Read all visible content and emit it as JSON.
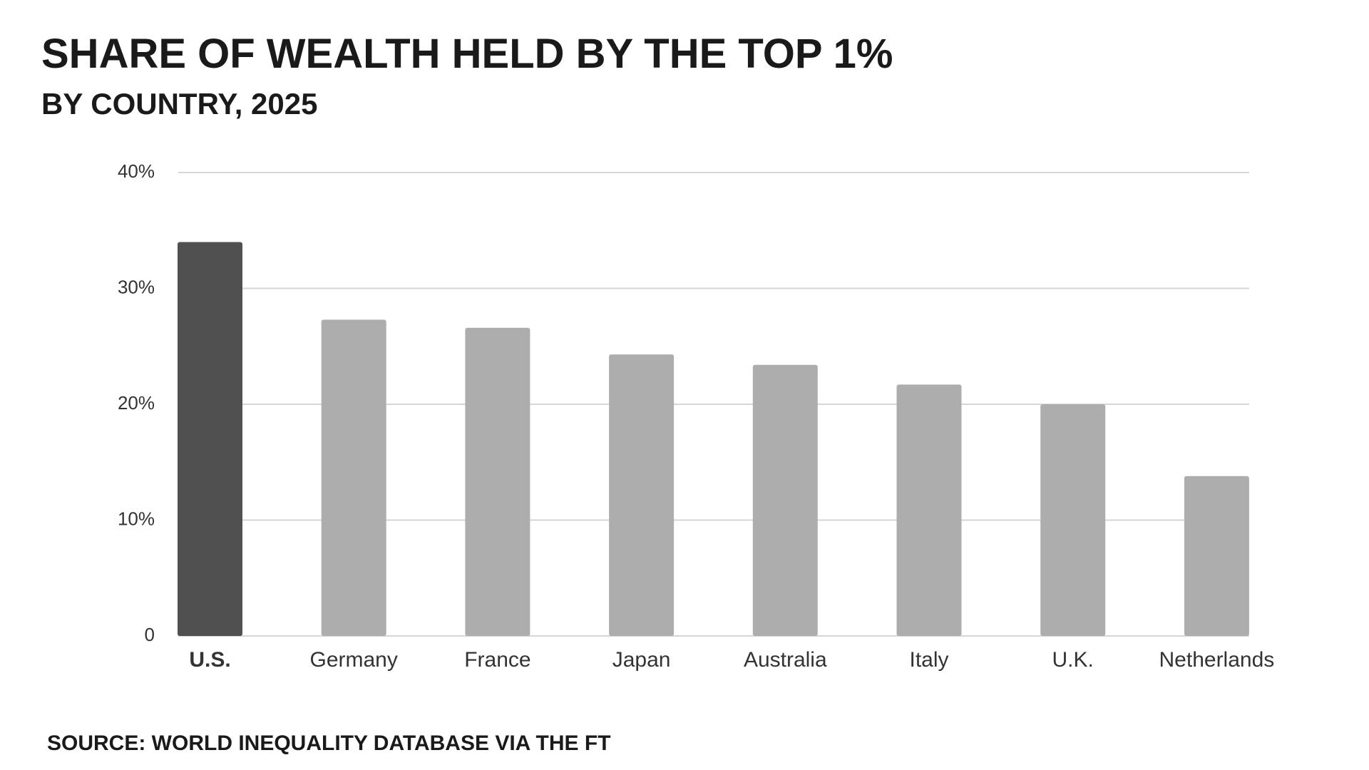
{
  "chart_data": {
    "type": "bar",
    "title": "SHARE OF WEALTH HELD BY THE TOP 1%",
    "subtitle": "BY COUNTRY, 2025",
    "source": "SOURCE: WORLD INEQUALITY DATABASE VIA THE FT",
    "categories": [
      "U.S.",
      "Germany",
      "France",
      "Japan",
      "Australia",
      "Italy",
      "U.K.",
      "Netherlands"
    ],
    "values": [
      34,
      27.3,
      26.6,
      24.3,
      23.4,
      21.7,
      20,
      13.8
    ],
    "colors": [
      "#505050",
      "#adadad",
      "#adadad",
      "#adadad",
      "#adadad",
      "#adadad",
      "#adadad",
      "#adadad"
    ],
    "ylim": [
      0,
      40
    ],
    "yticks": [
      0,
      {
        "value": 10,
        "label": "10%"
      },
      {
        "value": 20,
        "label": "20%"
      },
      {
        "value": 30,
        "label": "30%"
      },
      {
        "value": 40,
        "label": "40%"
      }
    ],
    "grid": true
  }
}
